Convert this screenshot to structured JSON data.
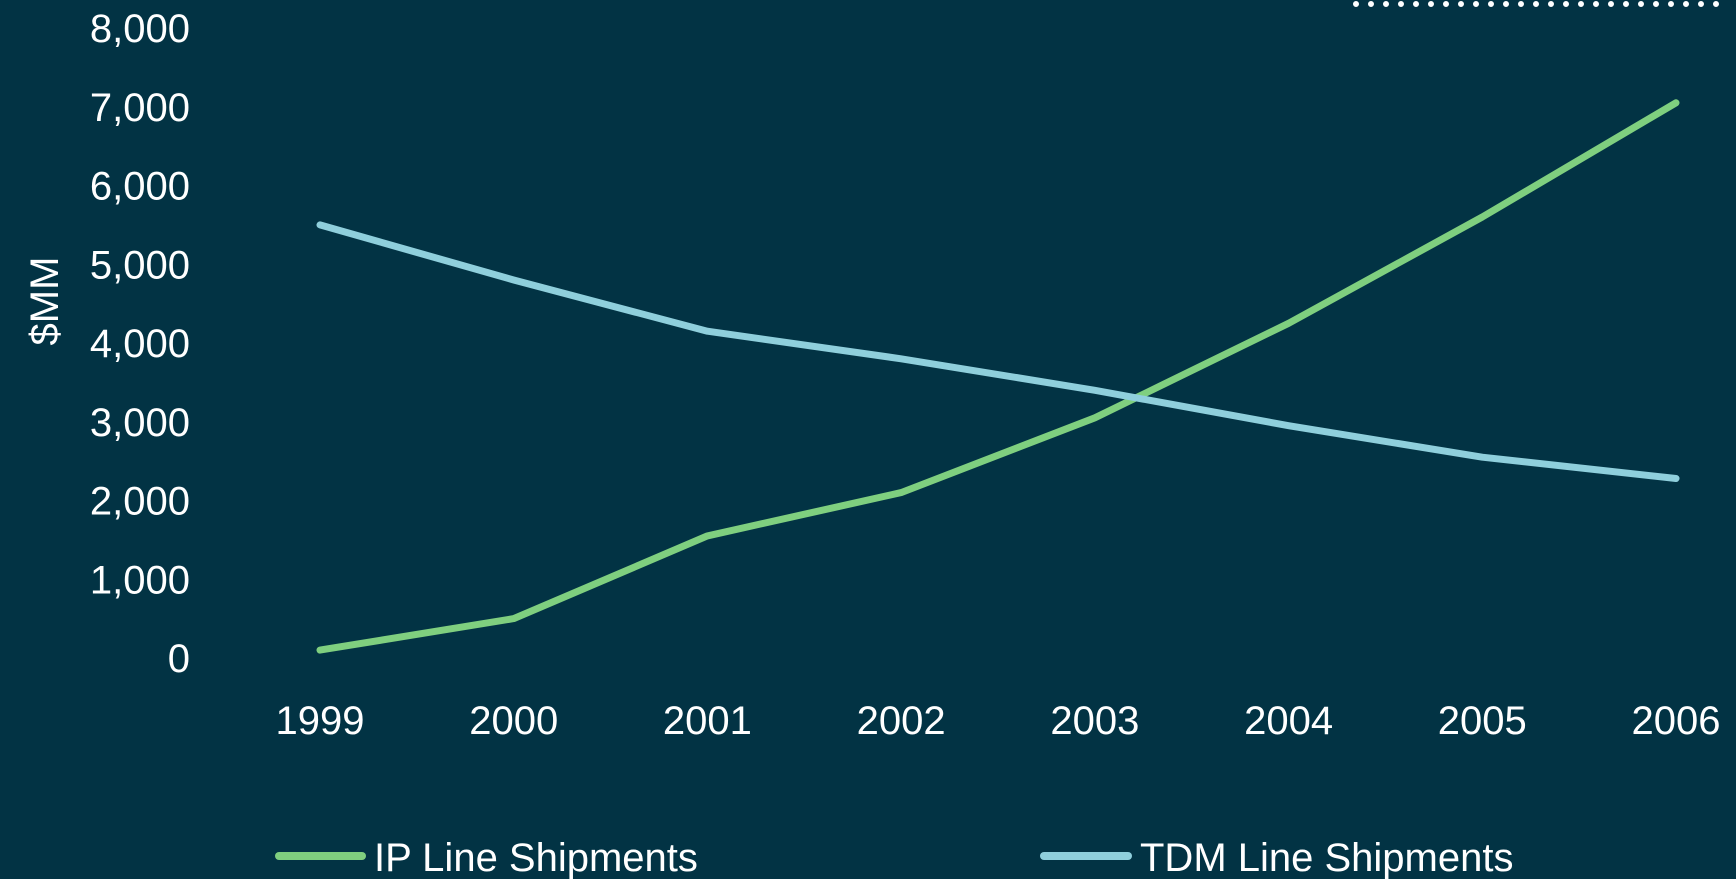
{
  "chart_data": {
    "type": "line",
    "title": "",
    "xlabel": "",
    "ylabel": "$MM",
    "x": [
      "1999",
      "2000",
      "2001",
      "2002",
      "2003",
      "2004",
      "2005",
      "2006"
    ],
    "y_ticks": [
      "0",
      "1,000",
      "2,000",
      "3,000",
      "4,000",
      "5,000",
      "6,000",
      "7,000",
      "8,000"
    ],
    "ylim": [
      0,
      8000
    ],
    "grid": false,
    "legend_position": "bottom",
    "series": [
      {
        "name": "IP Line Shipments",
        "color": "#7fcf7f",
        "values": [
          100,
          500,
          1550,
          2100,
          3050,
          4250,
          5600,
          7050
        ]
      },
      {
        "name": "TDM Line Shipments",
        "color": "#8fcfdc",
        "values": [
          5500,
          4800,
          4150,
          3800,
          3400,
          2950,
          2550,
          2280
        ]
      }
    ]
  }
}
